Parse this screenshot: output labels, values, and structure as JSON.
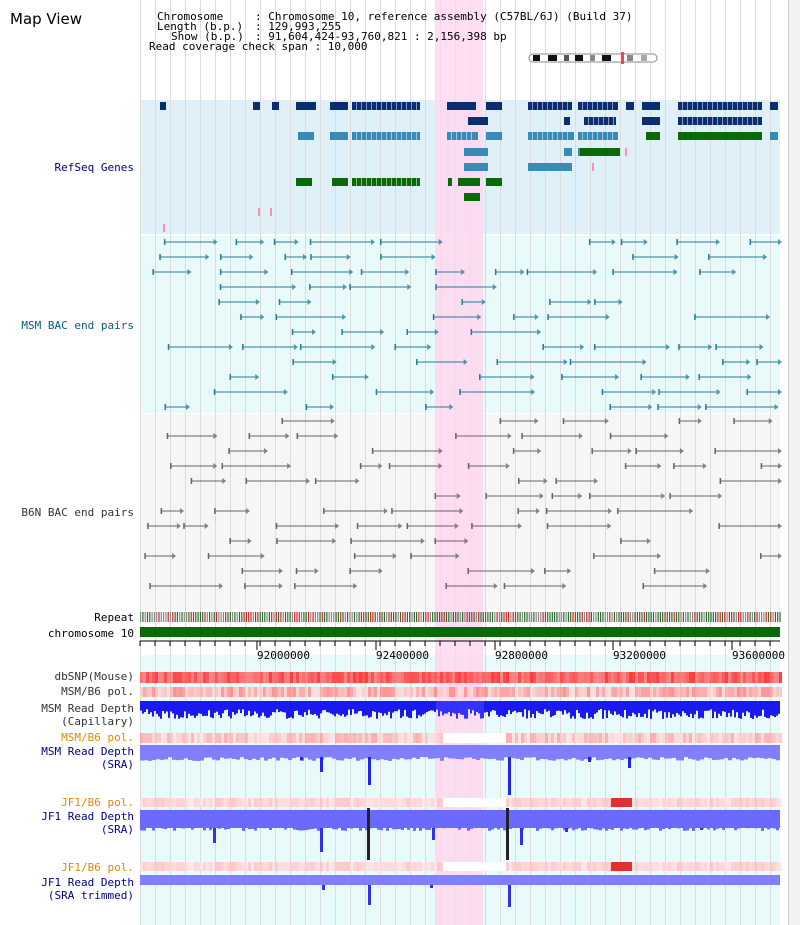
{
  "view_title": "Map View",
  "info": {
    "chromosome_key": "Chromosome",
    "chromosome_val": ": Chromosome 10, reference assembly (C57BL/6J) (Build 37)",
    "length_key": "Length (b.p.)",
    "length_val": ": 129,993,255",
    "show_key": "Show (b.p.)",
    "show_val": ": 91,604,424-93,760,821 : 2,156,398 bp",
    "span_line": "Read coverage check span : 10,000"
  },
  "tracks": {
    "refseq": "RefSeq Genes",
    "msm_bac": "MSM BAC end pairs",
    "b6n_bac": "B6N BAC end pairs",
    "repeat": "Repeat",
    "chromosome": "chromosome 10",
    "dbsnp": "dbSNP(Mouse)",
    "msm_b6_pol_1": "MSM/B6 pol.",
    "msm_depth_cap_1": "MSM Read Depth",
    "msm_depth_cap_2": "(Capillary)",
    "msm_b6_pol_2": "MSM/B6 pol.",
    "msm_depth_sra_1": "MSM Read Depth",
    "msm_depth_sra_2": "(SRA)",
    "jf1_b6_pol_1": "JF1/B6 pol.",
    "jf1_depth_sra_1": "JF1 Read Depth",
    "jf1_depth_sra_2": "(SRA)",
    "jf1_b6_pol_2": "JF1/B6 pol.",
    "jf1_depth_trim_1": "JF1 Read Depth",
    "jf1_depth_trim_2": "(SRA trimmed)"
  },
  "axis_ticks": [
    "92000000",
    "92400000",
    "92800000",
    "93200000",
    "93600000"
  ],
  "colors": {
    "refseq_bg": "#dff0f8",
    "msm_bg": "#e8fafa",
    "b6n_bg": "#f6f6f6",
    "selection": "#ffd6f0",
    "gene_dark": "#0a2e6e",
    "gene_mid": "#3a8ab8",
    "gene_green": "#0a6a0a",
    "chromosome_bar": "#0a6a0a",
    "depth_blue": "#2222ee",
    "depth_lavender": "#8080ff",
    "snp_red": "#ff7070"
  }
}
